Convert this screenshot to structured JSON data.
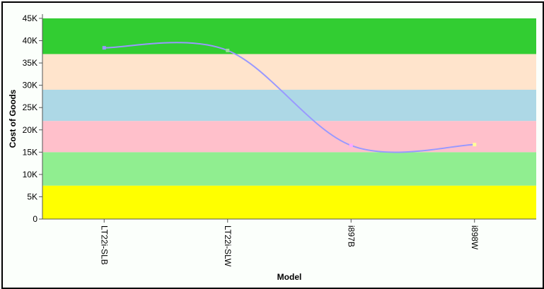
{
  "chart_data": {
    "type": "line",
    "title": "",
    "xlabel": "Model",
    "ylabel": "Cost of Goods",
    "categories": [
      "LT22i-SLB",
      "LT22i-SLW",
      "i897B",
      "i898W"
    ],
    "series": [
      {
        "values": [
          38400,
          37800,
          16500,
          16700
        ],
        "color": "#9999ff",
        "point_colors": [
          "#9999ff",
          "#99dd99",
          "#ffaaff",
          "#ffff99"
        ]
      }
    ],
    "ylim": [
      0,
      45000
    ],
    "y_ticks": [
      0,
      5000,
      10000,
      15000,
      20000,
      25000,
      30000,
      35000,
      40000,
      45000
    ],
    "y_tick_labels": [
      "0",
      "5K",
      "10K",
      "15K",
      "20K",
      "25K",
      "30K",
      "35K",
      "40K",
      "45K"
    ],
    "bands": [
      {
        "from": 0,
        "to": 7500,
        "color": "#ffff00"
      },
      {
        "from": 7500,
        "to": 15000,
        "color": "#90ee90"
      },
      {
        "from": 15000,
        "to": 22000,
        "color": "#ffc0cb"
      },
      {
        "from": 22000,
        "to": 29000,
        "color": "#add8e6"
      },
      {
        "from": 29000,
        "to": 37000,
        "color": "#ffe4cc"
      },
      {
        "from": 37000,
        "to": 45000,
        "color": "#32cd32"
      }
    ],
    "grid": false,
    "legend": "none"
  }
}
